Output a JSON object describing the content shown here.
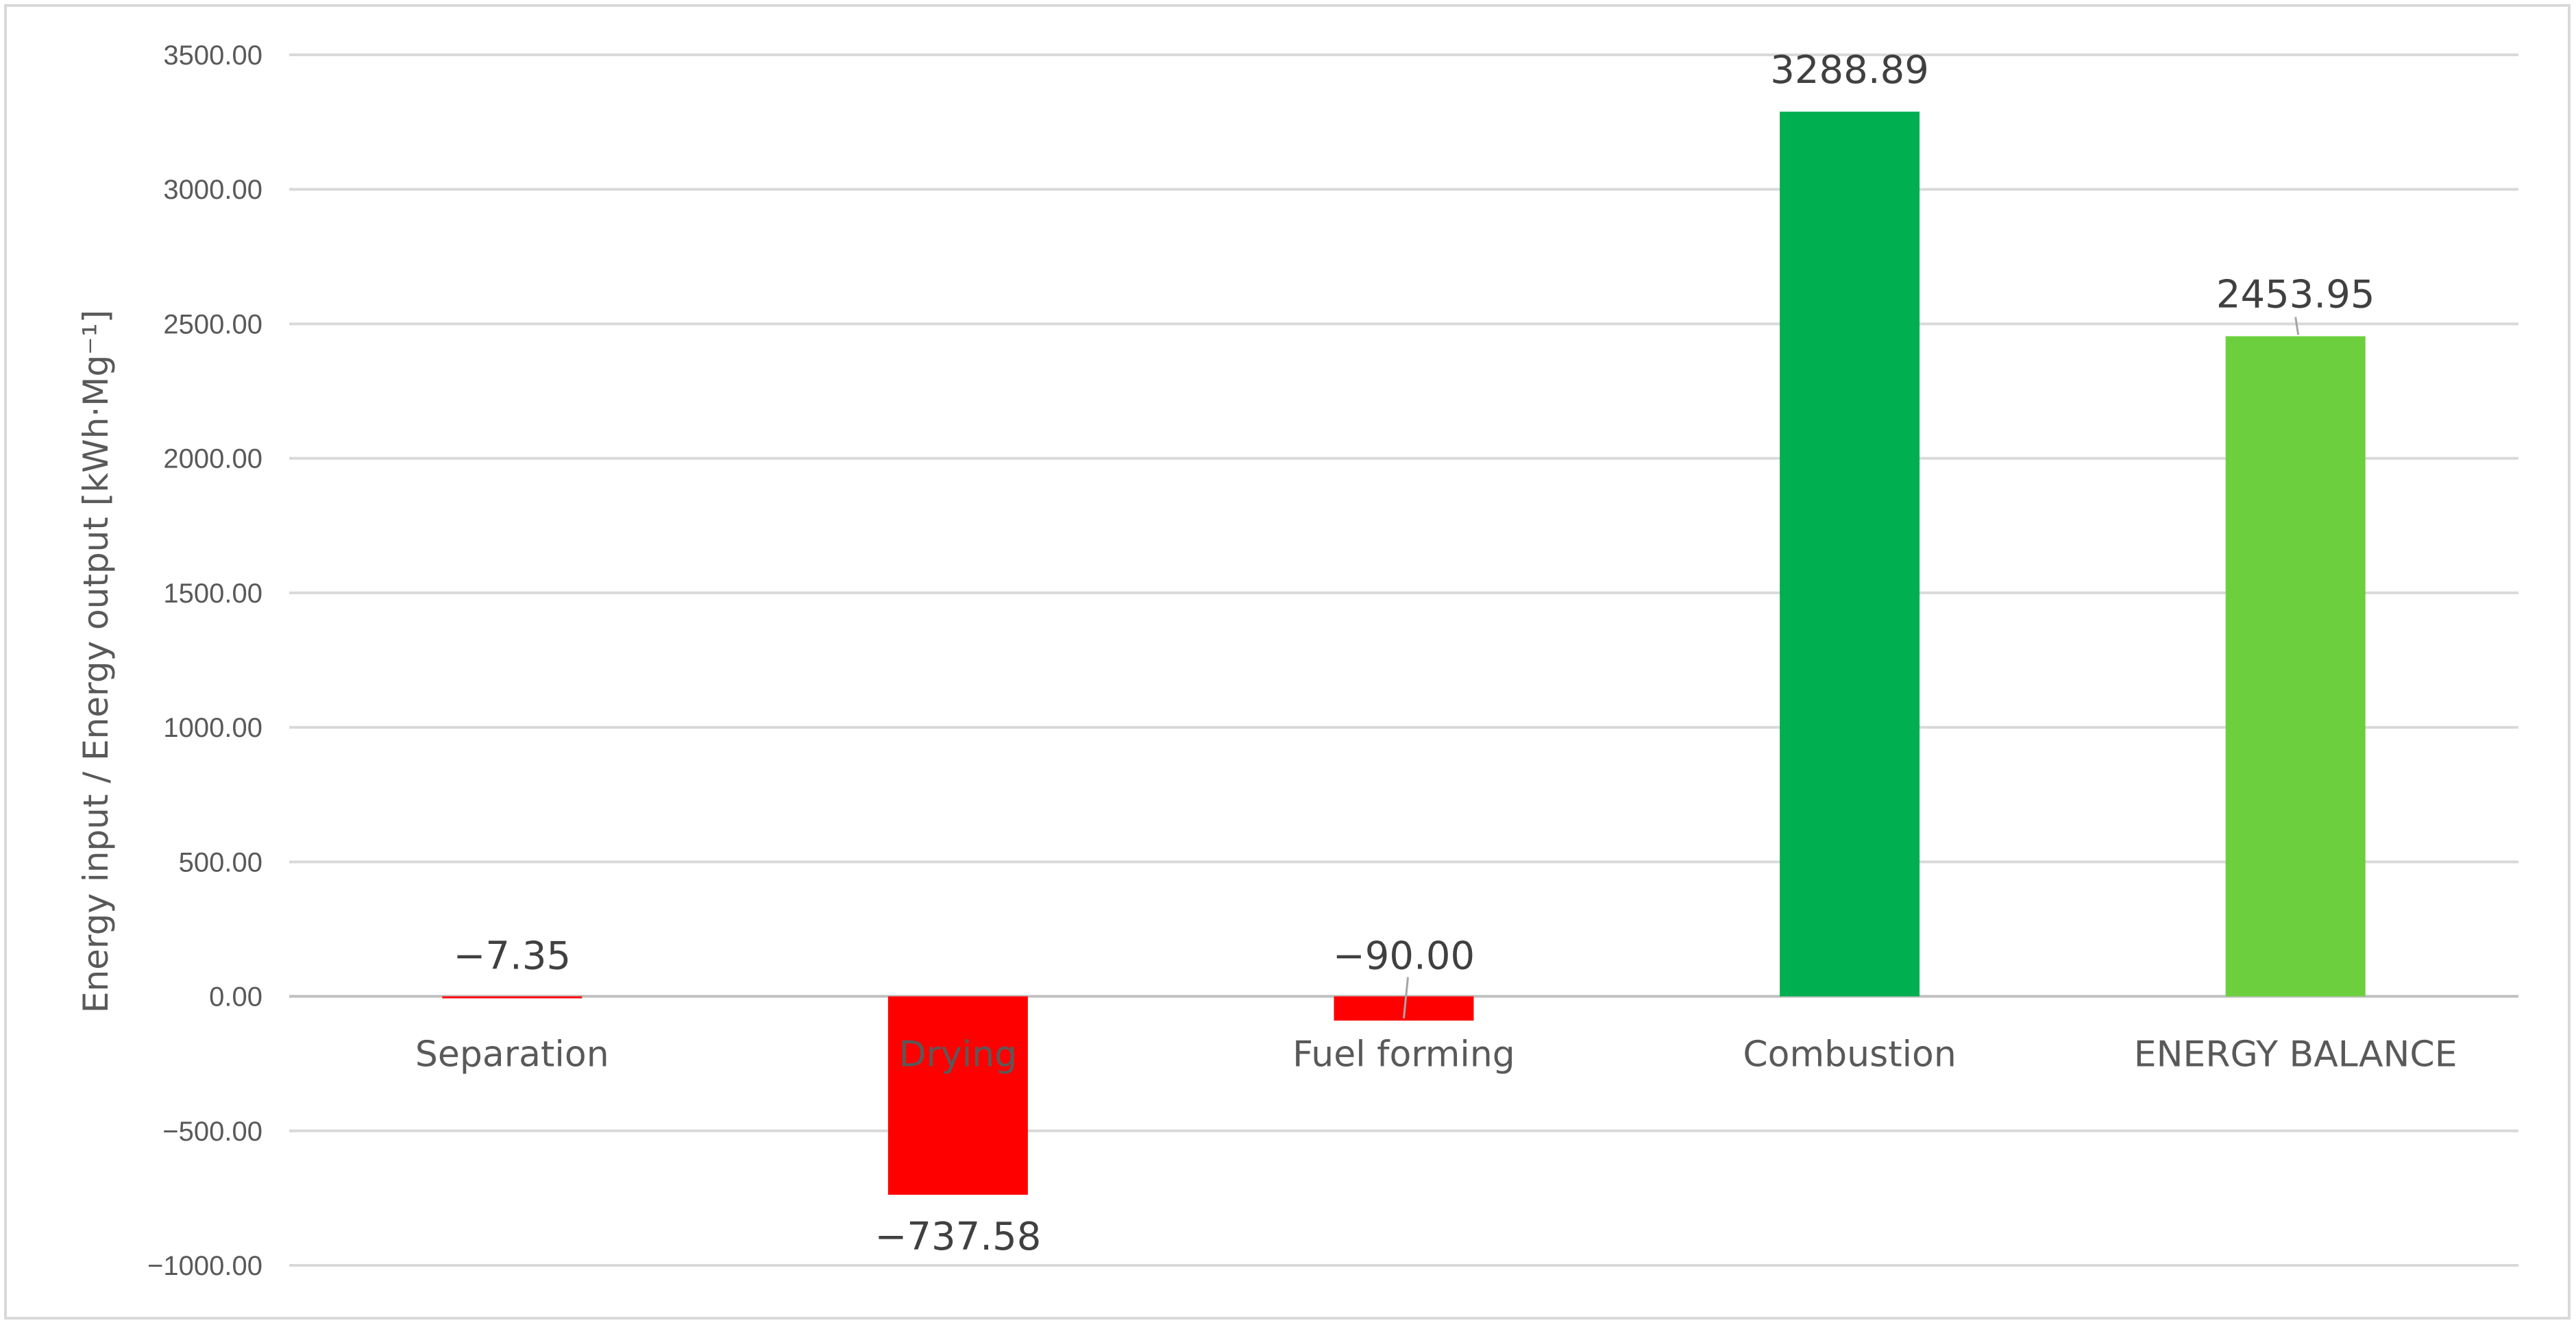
{
  "chart_data": {
    "type": "bar",
    "title": "",
    "xlabel": "",
    "ylabel": "Energy input / Energy output  [kWh·Mg⁻¹]",
    "ylim": [
      -1000,
      3500
    ],
    "ytick_step": 500,
    "ytick_labels": [
      "−1000.00",
      "−500.00",
      "0.00",
      "500.00",
      "1000.00",
      "1500.00",
      "2000.00",
      "2500.00",
      "3000.00",
      "3500.00"
    ],
    "grid": true,
    "legend": "none",
    "categories": [
      "Separation",
      "Drying",
      "Fuel forming",
      "Combustion",
      "ENERGY BALANCE"
    ],
    "values": [
      -7.35,
      -737.58,
      -90.0,
      3288.89,
      2453.95
    ],
    "data_labels": [
      "−7.35",
      "−737.58",
      "−90.00",
      "3288.89",
      "2453.95"
    ],
    "colors": [
      "#ff0000",
      "#ff0000",
      "#ff0000",
      "#00b050",
      "#6ccf3e"
    ],
    "grid_color": "#d9d9d9",
    "axis_color": "#bfbfbf"
  }
}
